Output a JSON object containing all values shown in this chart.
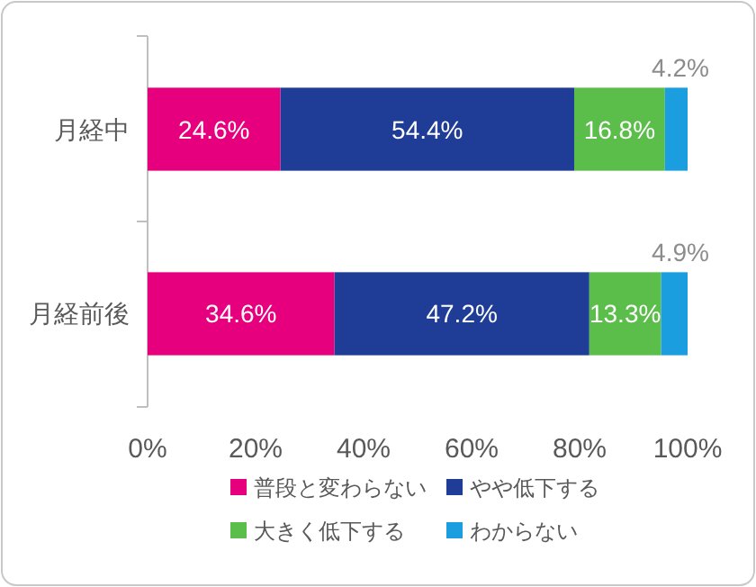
{
  "chart_data": {
    "type": "bar",
    "orientation": "horizontal",
    "stacked": true,
    "categories": [
      "月経中",
      "月経前後"
    ],
    "series": [
      {
        "name": "普段と変わらない",
        "color": "#e6007e",
        "values": [
          24.6,
          34.6
        ],
        "value_labels": [
          "24.6%",
          "34.6%"
        ]
      },
      {
        "name": "やや低下する",
        "color": "#1f3c96",
        "values": [
          54.4,
          47.2
        ],
        "value_labels": [
          "54.4%",
          "47.2%"
        ]
      },
      {
        "name": "大きく低下する",
        "color": "#5bbd4a",
        "values": [
          16.8,
          13.3
        ],
        "value_labels": [
          "16.8%",
          "13.3%"
        ]
      },
      {
        "name": "わからない",
        "color": "#1a9ee0",
        "values": [
          4.2,
          4.9
        ],
        "value_labels": [
          "4.2%",
          "4.9%"
        ]
      }
    ],
    "xlim": [
      0,
      100
    ],
    "xticks": [
      {
        "value": 0,
        "label": "0%"
      },
      {
        "value": 20,
        "label": "20%"
      },
      {
        "value": 40,
        "label": "40%"
      },
      {
        "value": 60,
        "label": "60%"
      },
      {
        "value": 80,
        "label": "80%"
      },
      {
        "value": 100,
        "label": "100%"
      }
    ],
    "legend": "bottom"
  }
}
